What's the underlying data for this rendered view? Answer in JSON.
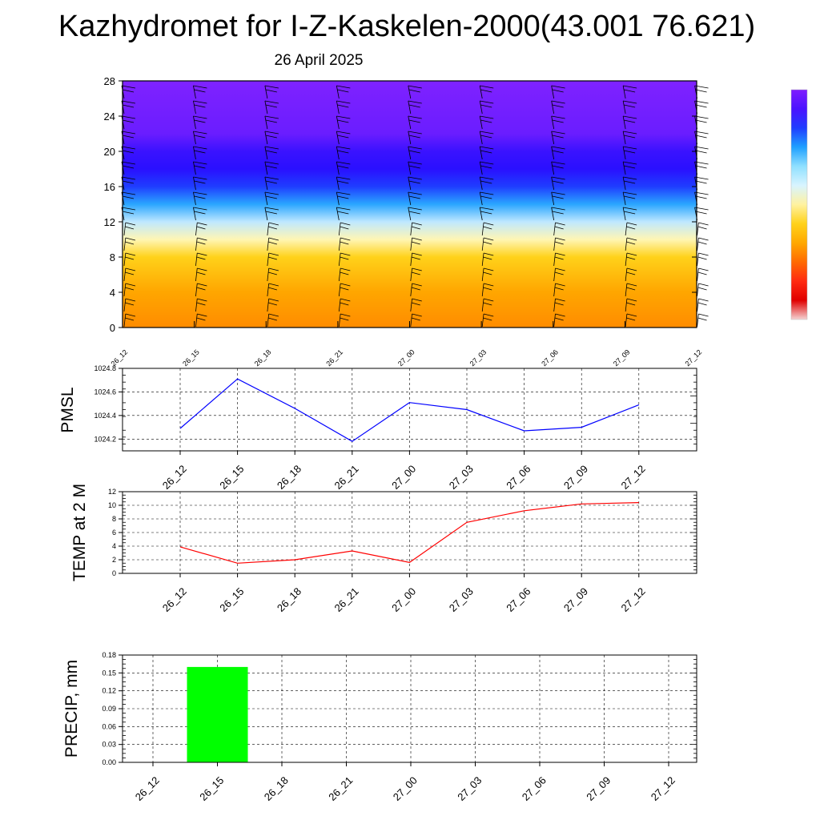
{
  "title": "Kazhydromet for I-Z-Kaskelen-2000(43.001 76.621)",
  "subtitle": "26 April 2025",
  "chart_data": [
    {
      "type": "heatmap",
      "name": "cross-section",
      "xlabel": "",
      "ylabel": "",
      "x_ticks": [
        "26_12",
        "26_15",
        "26_18",
        "26_21",
        "27_00",
        "27_03",
        "27_06",
        "27_09",
        "27_12"
      ],
      "y_ticks": [
        "0",
        "4",
        "8",
        "12",
        "16",
        "20",
        "24",
        "28"
      ],
      "ylim": [
        0,
        28
      ],
      "colorbar": [
        "#7f1dff",
        "#4a12ff",
        "#1f3dff",
        "#1fa0ff",
        "#8fe0ff",
        "#d8f4ff",
        "#fff2a0",
        "#ffd21a",
        "#ffa800",
        "#ff6a00",
        "#ff2a10",
        "#e00000",
        "#f4d4d4"
      ],
      "wind_barbs": true,
      "layers": [
        {
          "z": 0,
          "color": "#ff8c00"
        },
        {
          "z": 4,
          "color": "#ffa600"
        },
        {
          "z": 8,
          "color": "#ffd21a"
        },
        {
          "z": 10,
          "color": "#fff6b4"
        },
        {
          "z": 12,
          "color": "#bfe8ff"
        },
        {
          "z": 14,
          "color": "#2aa6ff"
        },
        {
          "z": 16,
          "color": "#1f3dff"
        },
        {
          "z": 18,
          "color": "#2a10ff"
        },
        {
          "z": 20,
          "color": "#3a12ff"
        },
        {
          "z": 22,
          "color": "#6a1dff"
        },
        {
          "z": 28,
          "color": "#7f22ff"
        }
      ]
    },
    {
      "type": "line",
      "ylabel": "PMSL",
      "categories": [
        "26_12",
        "26_15",
        "26_18",
        "26_21",
        "27_00",
        "27_03",
        "27_06",
        "27_09",
        "27_12"
      ],
      "values": [
        1024.29,
        1024.71,
        1024.46,
        1024.18,
        1024.51,
        1024.45,
        1024.27,
        1024.3,
        1024.49
      ],
      "ylim": [
        1024.1,
        1024.8
      ],
      "y_ticks": [
        "1024.2",
        "1024.4",
        "1024.6",
        "1024.8"
      ],
      "color": "#0000ff",
      "grid": true
    },
    {
      "type": "line",
      "ylabel": "TEMP at 2 M",
      "categories": [
        "26_12",
        "26_15",
        "26_18",
        "26_21",
        "27_00",
        "27_03",
        "27_06",
        "27_09",
        "27_12"
      ],
      "values": [
        3.9,
        1.5,
        2.0,
        3.3,
        1.6,
        7.5,
        9.2,
        10.2,
        10.4
      ],
      "ylim": [
        0,
        12
      ],
      "y_ticks": [
        "0",
        "2",
        "4",
        "6",
        "8",
        "10",
        "12"
      ],
      "color": "#ff0000",
      "grid": true
    },
    {
      "type": "bar",
      "ylabel": "PRECIP, mm",
      "categories": [
        "26_12",
        "26_15",
        "26_18",
        "26_21",
        "27_00",
        "27_03",
        "27_06",
        "27_09",
        "27_12"
      ],
      "values": [
        0,
        0.16,
        0,
        0,
        0,
        0,
        0,
        0,
        0
      ],
      "ylim": [
        0,
        0.18
      ],
      "y_ticks": [
        "0.00",
        "0.03",
        "0.06",
        "0.09",
        "0.12",
        "0.15",
        "0.18"
      ],
      "color": "#00ff00",
      "grid": true
    }
  ]
}
